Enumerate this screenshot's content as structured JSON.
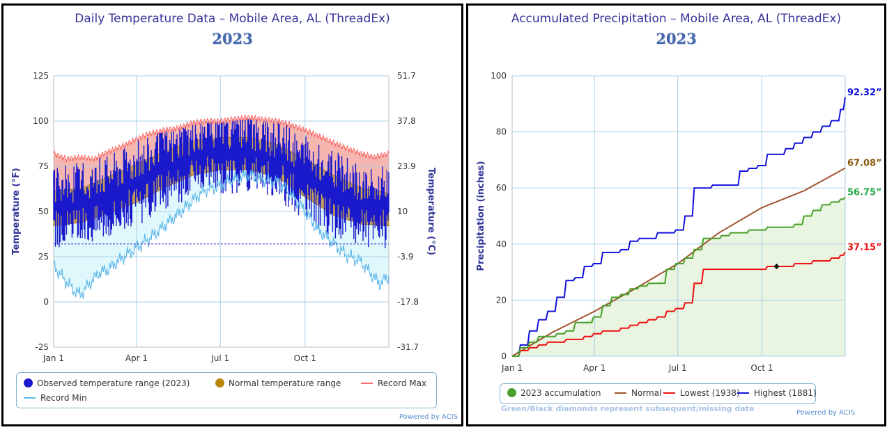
{
  "left": {
    "title": "Daily Temperature Data – Mobile Area, AL (ThreadEx)",
    "year": "2023",
    "credit": "Powered by ACIS",
    "legend": {
      "observed": "Observed temperature range (2023)",
      "normal": "Normal temperature range",
      "record_max": "Record Max",
      "record_min": "Record Min"
    }
  },
  "right": {
    "title": "Accumulated Precipitation – Mobile Area, AL (ThreadEx)",
    "year": "2023",
    "credit": "Powered by ACIS",
    "note": "Green/Black diamonds represent subsequent/missing data",
    "legend": {
      "acc": "2023 accumulation",
      "normal": "Normal",
      "lowest": "Lowest (1938)",
      "highest": "Highest (1881)"
    }
  },
  "colors": {
    "observed": "#1a1acc",
    "normal_fill": "#c8a055",
    "record_max": "#ff5a5a",
    "record_max_fill": "#f5b6b0",
    "record_min": "#5bb6ea",
    "record_min_fill": "#dff8fb",
    "freezing": "#1a1acc",
    "precip_green": "#4aa02c",
    "precip_brown": "#a0522d",
    "precip_red": "#ee1111",
    "precip_blue": "#1111dd",
    "precip_fill": "#e9f4e1",
    "grid": "#a9cfe6",
    "title": "#333399"
  },
  "chart_data": [
    {
      "type": "area",
      "title": "Daily Temperature Data – Mobile Area, AL (ThreadEx)",
      "subtitle": "2023",
      "ylabel": "Temperature (°F)",
      "y2label": "Temperature (°C)",
      "ylim": [
        -25,
        125
      ],
      "yticks": [
        -25,
        0,
        25,
        50,
        75,
        100,
        125
      ],
      "y2ticks": [
        "-31.7",
        "-17.8",
        "-3.9",
        "10",
        "23.9",
        "37.8",
        "51.7"
      ],
      "xlim_day": [
        1,
        365
      ],
      "xticks": [
        {
          "label": "Jan 1",
          "day": 1
        },
        {
          "label": "Apr 1",
          "day": 91
        },
        {
          "label": "Jul 1",
          "day": 182
        },
        {
          "label": "Oct 1",
          "day": 274
        }
      ],
      "freezing_line_f": 32,
      "grid": true,
      "legend_position": "bottom",
      "series": [
        {
          "name": "Record Max",
          "day": [
            1,
            15,
            30,
            45,
            60,
            75,
            91,
            105,
            121,
            135,
            152,
            166,
            182,
            196,
            213,
            227,
            244,
            258,
            274,
            288,
            305,
            319,
            335,
            349,
            365
          ],
          "values": [
            82,
            79,
            80,
            79,
            83,
            86,
            90,
            93,
            95,
            96,
            99,
            100,
            100,
            101,
            102,
            101,
            100,
            98,
            95,
            92,
            88,
            85,
            82,
            80,
            82
          ]
        },
        {
          "name": "Record Min",
          "day": [
            1,
            10,
            20,
            30,
            40,
            50,
            60,
            70,
            80,
            91,
            105,
            121,
            135,
            152,
            166,
            182,
            196,
            213,
            227,
            244,
            258,
            274,
            288,
            305,
            319,
            335,
            345,
            355,
            365
          ],
          "values": [
            20,
            14,
            8,
            4,
            10,
            16,
            18,
            22,
            26,
            30,
            35,
            42,
            48,
            56,
            62,
            64,
            68,
            70,
            68,
            66,
            60,
            50,
            40,
            32,
            26,
            22,
            16,
            10,
            14
          ]
        },
        {
          "name": "Normal temperature range",
          "day": [
            1,
            32,
            60,
            91,
            121,
            152,
            182,
            213,
            244,
            274,
            305,
            335,
            365
          ],
          "high": [
            61,
            63,
            69,
            76,
            83,
            89,
            91,
            91,
            87,
            79,
            70,
            63,
            60
          ],
          "low": [
            42,
            44,
            49,
            55,
            63,
            70,
            73,
            73,
            69,
            58,
            48,
            43,
            42
          ]
        }
      ]
    },
    {
      "type": "line",
      "title": "Accumulated Precipitation – Mobile Area, AL (ThreadEx)",
      "subtitle": "2023",
      "ylabel": "Precipitation (inches)",
      "ylim": [
        0,
        100
      ],
      "yticks": [
        0,
        20,
        40,
        60,
        80,
        100
      ],
      "xlim_day": [
        1,
        365
      ],
      "xticks": [
        {
          "label": "Jan 1",
          "day": 1
        },
        {
          "label": "Apr 1",
          "day": 91
        },
        {
          "label": "Jul 1",
          "day": 182
        },
        {
          "label": "Oct 1",
          "day": 274
        }
      ],
      "grid": true,
      "legend_position": "bottom",
      "series": [
        {
          "name": "2023 accumulation",
          "end_label": "56.75”",
          "day": [
            1,
            10,
            20,
            30,
            40,
            50,
            60,
            70,
            80,
            90,
            100,
            110,
            120,
            130,
            140,
            150,
            160,
            170,
            180,
            190,
            200,
            210,
            220,
            230,
            240,
            250,
            260,
            270,
            280,
            290,
            300,
            310,
            320,
            330,
            340,
            350,
            360,
            365
          ],
          "values": [
            0,
            3,
            5,
            7,
            7,
            8,
            9,
            12,
            12,
            14,
            18,
            21,
            22,
            24,
            25,
            26,
            26,
            31,
            33,
            35,
            38,
            42,
            42,
            43,
            44,
            44,
            45,
            45,
            46,
            46,
            46,
            47,
            50,
            52,
            54,
            55,
            56,
            56.75
          ]
        },
        {
          "name": "Normal",
          "end_label": "67.08”",
          "day": [
            1,
            45,
            91,
            135,
            182,
            227,
            274,
            320,
            365
          ],
          "values": [
            0,
            8.5,
            16,
            24,
            33,
            44,
            53,
            59,
            67.08
          ]
        },
        {
          "name": "Lowest (1938)",
          "end_label": "37.15”",
          "day": [
            1,
            10,
            20,
            30,
            40,
            50,
            60,
            70,
            80,
            90,
            100,
            110,
            120,
            130,
            140,
            150,
            160,
            170,
            180,
            190,
            200,
            210,
            220,
            230,
            240,
            250,
            260,
            270,
            280,
            290,
            300,
            310,
            320,
            330,
            340,
            350,
            360,
            365
          ],
          "values": [
            0,
            2,
            3,
            4,
            5,
            5,
            6,
            6,
            7,
            8,
            9,
            9,
            10,
            11,
            12,
            13,
            14,
            16,
            17,
            19,
            26,
            31,
            31,
            31,
            31,
            31,
            31,
            31,
            32,
            32,
            32,
            33,
            33,
            34,
            34,
            35,
            36,
            37.15
          ]
        },
        {
          "name": "Highest (1881)",
          "end_label": "92.32”",
          "day": [
            1,
            10,
            20,
            30,
            40,
            50,
            60,
            70,
            80,
            90,
            100,
            110,
            120,
            130,
            140,
            150,
            160,
            170,
            180,
            190,
            200,
            210,
            220,
            230,
            240,
            250,
            260,
            270,
            280,
            290,
            300,
            310,
            320,
            330,
            340,
            350,
            360,
            365
          ],
          "values": [
            0,
            4,
            9,
            13,
            16,
            21,
            27,
            28,
            32,
            33,
            37,
            37,
            38,
            41,
            42,
            42,
            44,
            44,
            45,
            50,
            60,
            60,
            61,
            61,
            61,
            66,
            67,
            68,
            72,
            72,
            74,
            76,
            78,
            80,
            82,
            84,
            88,
            92.32
          ]
        }
      ]
    }
  ]
}
